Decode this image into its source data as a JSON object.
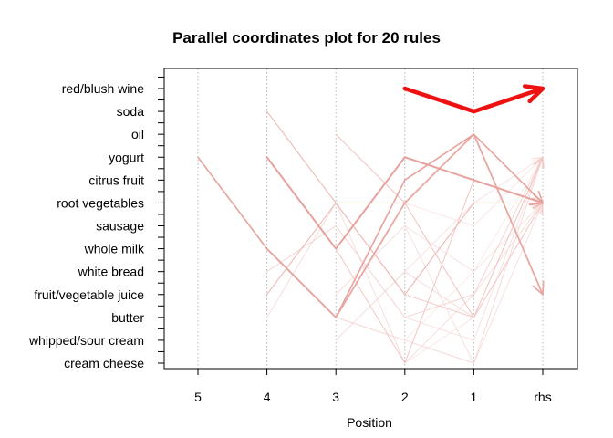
{
  "chart_data": {
    "type": "parallel-coordinates",
    "title": "Parallel coordinates plot for 20 rules",
    "xlabel": "Position",
    "x_ticks": [
      "5",
      "4",
      "3",
      "2",
      "1",
      "rhs"
    ],
    "items": [
      "red/blush wine",
      "soda",
      "oil",
      "yogurt",
      "citrus fruit",
      "root vegetables",
      "sausage",
      "whole milk",
      "white bread",
      "fruit/vegetable juice",
      "butter",
      "whipped/sour cream",
      "cream cheese"
    ],
    "grid": "vertical dotted",
    "rules": [
      {
        "path": [
          null,
          null,
          null,
          "red/blush wine",
          "soda",
          "red/blush wine"
        ],
        "color": "#ee1111",
        "width": 4.5
      },
      {
        "path": [
          "yogurt",
          "whole milk",
          "butter",
          "citrus fruit",
          "oil",
          "root vegetables"
        ],
        "color": "#e8a29d",
        "width": 1.6
      },
      {
        "path": [
          null,
          "yogurt",
          "whole milk",
          "yogurt",
          "citrus fruit",
          "root vegetables"
        ],
        "color": "#e8a29d",
        "width": 2.0
      },
      {
        "path": [
          null,
          "whole milk",
          "butter",
          "root vegetables",
          "oil",
          "fruit/vegetable juice"
        ],
        "color": "#e9a7a2",
        "width": 1.8
      },
      {
        "path": [
          null,
          "soda",
          "root vegetables",
          "fruit/vegetable juice",
          "root vegetables",
          "root vegetables"
        ],
        "color": "#eeb9b5",
        "width": 1.1
      },
      {
        "path": [
          null,
          "fruit/vegetable juice",
          "root vegetables",
          "root vegetables",
          "oil",
          "root vegetables"
        ],
        "color": "#efbbb7",
        "width": 1.1
      },
      {
        "path": [
          null,
          null,
          "oil",
          "root vegetables",
          "butter",
          "yogurt"
        ],
        "color": "#f0c2be",
        "width": 1.0
      },
      {
        "path": [
          null,
          null,
          "whole milk",
          "cream cheese",
          "citrus fruit",
          "root vegetables"
        ],
        "color": "#f1c6c3",
        "width": 1.0
      },
      {
        "path": [
          null,
          null,
          "root vegetables",
          "fruit/vegetable juice",
          "butter",
          "root vegetables"
        ],
        "color": "#f2cbc8",
        "width": 1.0
      },
      {
        "path": [
          null,
          "white bread",
          "sausage",
          "butter",
          "fruit/vegetable juice",
          "yogurt"
        ],
        "color": "#f4d5d3",
        "width": 1.0
      },
      {
        "path": [
          null,
          null,
          "butter",
          "whipped/sour cream",
          "cream cheese",
          "yogurt"
        ],
        "color": "#f5d9d7",
        "width": 1.0
      },
      {
        "path": [
          null,
          null,
          "whipped/sour cream",
          "white bread",
          "butter",
          "root vegetables"
        ],
        "color": "#f5dcda",
        "width": 1.0
      },
      {
        "path": [
          null,
          "butter",
          "root vegetables",
          "cream cheese",
          "fruit/vegetable juice",
          "root vegetables"
        ],
        "color": "#f6dedc",
        "width": 1.0
      },
      {
        "path": [
          null,
          null,
          null,
          "butter",
          "whipped/sour cream",
          "yogurt"
        ],
        "color": "#f6e0df",
        "width": 1.0
      },
      {
        "path": [
          null,
          null,
          "fruit/vegetable juice",
          "sausage",
          "cream cheese",
          "root vegetables"
        ],
        "color": "#f6e0de",
        "width": 1.0
      },
      {
        "path": [
          null,
          null,
          null,
          "white bread",
          "root vegetables",
          "yogurt"
        ],
        "color": "#f7e3e1",
        "width": 1.0
      },
      {
        "path": [
          null,
          null,
          null,
          "sausage",
          "white bread",
          "root vegetables"
        ],
        "color": "#f7e4e2",
        "width": 1.0
      },
      {
        "path": [
          null,
          null,
          null,
          "root vegetables",
          "sausage",
          "yogurt"
        ],
        "color": "#f8e7e6",
        "width": 1.0
      },
      {
        "path": [
          null,
          null,
          null,
          "cream cheese",
          "butter",
          "root vegetables"
        ],
        "color": "#f8e9e8",
        "width": 1.0
      },
      {
        "path": [
          null,
          null,
          "butter",
          "whipped/sour cream",
          "white bread",
          "yogurt"
        ],
        "color": "#f9ebea",
        "width": 1.0
      }
    ]
  }
}
